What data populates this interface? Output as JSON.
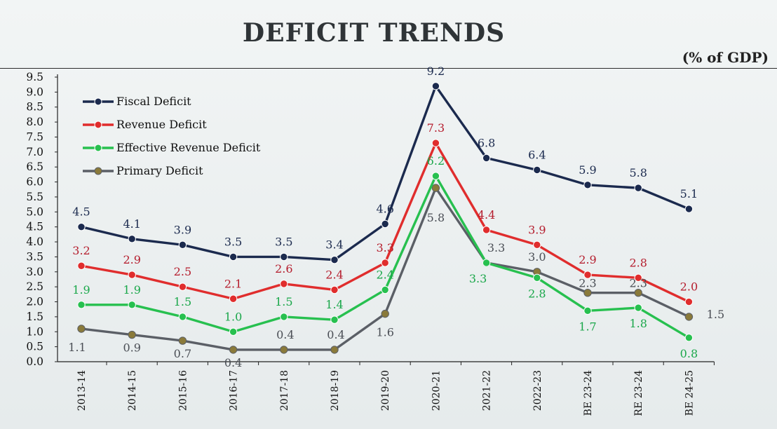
{
  "header": {
    "title": "DEFICIT TRENDS",
    "unit": "(% of GDP)"
  },
  "chart_data": {
    "type": "line",
    "title": "DEFICIT TRENDS",
    "ylabel": "(% of GDP)",
    "xlabel": "",
    "ylim": [
      0,
      9.5
    ],
    "yticks": [
      "0.0",
      "0.5",
      "1.0",
      "1.5",
      "2.0",
      "2.5",
      "3.0",
      "3.5",
      "4.0",
      "4.5",
      "5.0",
      "5.5",
      "6.0",
      "6.5",
      "7.0",
      "7.5",
      "8.0",
      "8.5",
      "9.0",
      "9.5"
    ],
    "categories": [
      "2013-14",
      "2014-15",
      "2015-16",
      "2016-17",
      "2017-18",
      "2018-19",
      "2019-20",
      "2020-21",
      "2021-22",
      "2022-23",
      "BE 23-24",
      "RE 23-24",
      "BE 24-25"
    ],
    "legend_position": "top-left",
    "series": [
      {
        "name": "Fiscal Deficit",
        "color": "#1b2a4e",
        "label_color": "#1b2a4e",
        "values": [
          4.5,
          4.1,
          3.9,
          3.5,
          3.5,
          3.4,
          4.6,
          9.2,
          6.8,
          6.4,
          5.9,
          5.8,
          5.1
        ],
        "labels": [
          "4.5",
          "4.1",
          "3.9",
          "3.5",
          "3.5",
          "3.4",
          "4.6",
          "9.2",
          "6.8",
          "6.4",
          "5.9",
          "5.8",
          "5.1"
        ]
      },
      {
        "name": "Revenue Deficit",
        "color": "#e02d2d",
        "label_color": "#b51d2d",
        "values": [
          3.2,
          2.9,
          2.5,
          2.1,
          2.6,
          2.4,
          3.3,
          7.3,
          4.4,
          3.9,
          2.9,
          2.8,
          2.0
        ],
        "labels": [
          "3.2",
          "2.9",
          "2.5",
          "2.1",
          "2.6",
          "2.4",
          "3.3",
          "7.3",
          "4.4",
          "3.9",
          "2.9",
          "2.8",
          "2.0"
        ]
      },
      {
        "name": "Effective Revenue Deficit",
        "color": "#27c04f",
        "label_color": "#1aa74a",
        "values": [
          1.9,
          1.9,
          1.5,
          1.0,
          1.5,
          1.4,
          2.4,
          6.2,
          3.3,
          2.8,
          1.7,
          1.8,
          0.8
        ],
        "labels": [
          "1.9",
          "1.9",
          "1.5",
          "1.0",
          "1.5",
          "1.4",
          "2.4",
          "6.2",
          "3.3",
          "2.8",
          "1.7",
          "1.8",
          "0.8"
        ]
      },
      {
        "name": "Primary Deficit",
        "color": "#5b5f66",
        "label_color": "#4a4e55",
        "values": [
          1.1,
          0.9,
          0.7,
          0.4,
          0.4,
          0.4,
          1.6,
          5.8,
          3.3,
          3.0,
          2.3,
          2.3,
          1.5
        ],
        "labels": [
          "1.1",
          "0.9",
          "0.7",
          "0.4",
          "0.4",
          "0.4",
          "1.6",
          "5.8",
          "3.3",
          "3.0",
          "2.3",
          "2.3",
          "1.5"
        ]
      }
    ]
  }
}
